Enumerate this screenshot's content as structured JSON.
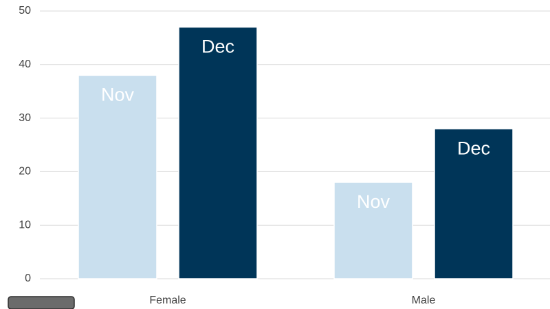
{
  "chart_data": {
    "type": "bar",
    "categories": [
      "Female",
      "Male"
    ],
    "series": [
      {
        "name": "Nov",
        "color": "#c9dfee",
        "values": [
          38,
          18
        ]
      },
      {
        "name": "Dec",
        "color": "#003558",
        "values": [
          47,
          28
        ]
      }
    ],
    "ylim": [
      0,
      50
    ],
    "yticks": [
      0,
      10,
      20,
      30,
      40,
      50
    ],
    "grid": true
  }
}
